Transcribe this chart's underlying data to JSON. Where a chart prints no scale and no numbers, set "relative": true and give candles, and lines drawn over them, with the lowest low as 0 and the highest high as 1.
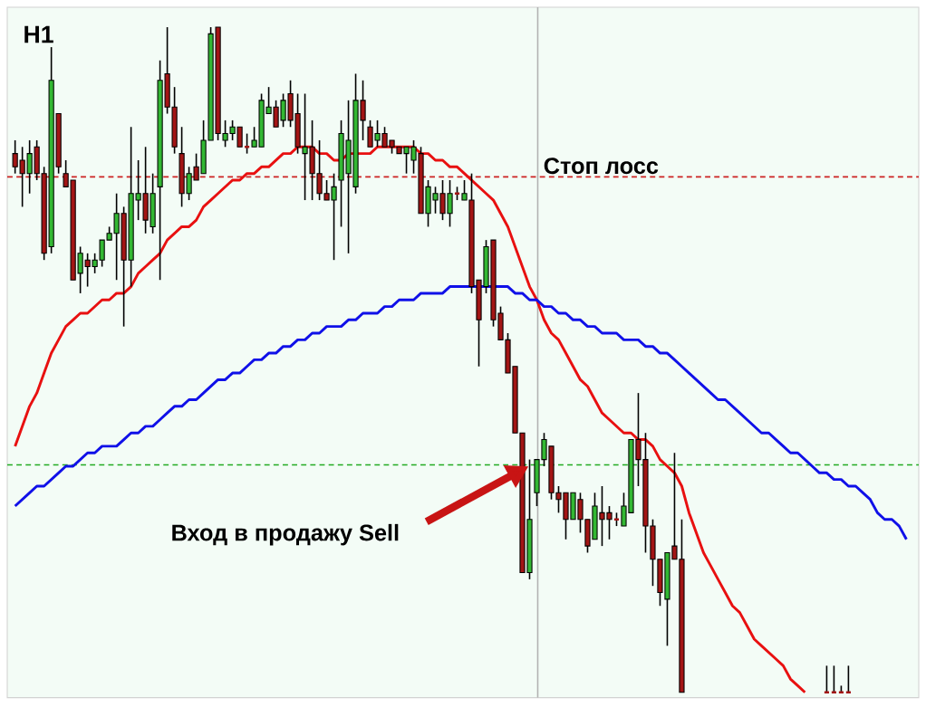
{
  "chart_data": {
    "type": "candlestick",
    "title": "H1",
    "relative": true,
    "categories": [
      null,
      null,
      null,
      null,
      null,
      null,
      null,
      null,
      null,
      null,
      null,
      null,
      null,
      null,
      null,
      null,
      null,
      null,
      null,
      null,
      null,
      null,
      null,
      null,
      null,
      null,
      null,
      null,
      null,
      null,
      null,
      null,
      null,
      null,
      null,
      null,
      null,
      null,
      null,
      null,
      null,
      null,
      null,
      null,
      null,
      null,
      null,
      null,
      null,
      null,
      null,
      null,
      null,
      null,
      null,
      null,
      null,
      null,
      null,
      null,
      null,
      null,
      null,
      null,
      null,
      null,
      null,
      null,
      null,
      null,
      null,
      null,
      null,
      null,
      null,
      null,
      null,
      null,
      null,
      null,
      null,
      null,
      null,
      null,
      null,
      null,
      null,
      null,
      null,
      null,
      null,
      null,
      null,
      null,
      null,
      null,
      null,
      null,
      null,
      null,
      null,
      null,
      null,
      null,
      null,
      null,
      null,
      null,
      null,
      null,
      null,
      null,
      null,
      null,
      null,
      null,
      null,
      null,
      null,
      null,
      null,
      null,
      null,
      null
    ],
    "ohlc": [
      [
        0.81,
        0.83,
        0.78,
        0.79
      ],
      [
        0.8,
        0.82,
        0.73,
        0.78
      ],
      [
        0.78,
        0.83,
        0.75,
        0.81
      ],
      [
        0.82,
        0.83,
        0.77,
        0.78
      ],
      [
        0.78,
        0.79,
        0.65,
        0.66
      ],
      [
        0.67,
        0.97,
        0.66,
        0.92
      ],
      [
        0.87,
        0.87,
        0.78,
        0.79
      ],
      [
        0.78,
        0.8,
        0.76,
        0.76
      ],
      [
        0.77,
        0.77,
        0.62,
        0.62
      ],
      [
        0.63,
        0.67,
        0.6,
        0.66
      ],
      [
        0.65,
        0.66,
        0.61,
        0.64
      ],
      [
        0.64,
        0.66,
        0.63,
        0.65
      ],
      [
        0.65,
        0.68,
        0.64,
        0.68
      ],
      [
        0.68,
        0.7,
        0.68,
        0.69
      ],
      [
        0.69,
        0.75,
        0.62,
        0.72
      ],
      [
        0.72,
        0.73,
        0.55,
        0.65
      ],
      [
        0.65,
        0.85,
        0.61,
        0.75
      ],
      [
        0.74,
        0.8,
        0.71,
        0.75
      ],
      [
        0.75,
        0.82,
        0.69,
        0.71
      ],
      [
        0.7,
        0.78,
        0.69,
        0.75
      ],
      [
        0.76,
        0.95,
        0.62,
        0.92
      ],
      [
        0.93,
        1.0,
        0.87,
        0.88
      ],
      [
        0.88,
        0.91,
        0.81,
        0.82
      ],
      [
        0.81,
        0.85,
        0.73,
        0.75
      ],
      [
        0.75,
        0.79,
        0.74,
        0.78
      ],
      [
        0.79,
        0.81,
        0.77,
        0.77
      ],
      [
        0.78,
        0.86,
        0.78,
        0.83
      ],
      [
        0.83,
        1.0,
        0.83,
        0.99
      ],
      [
        1.0,
        1.0,
        0.83,
        0.84
      ],
      [
        0.83,
        0.86,
        0.82,
        0.84
      ],
      [
        0.84,
        0.86,
        0.83,
        0.85
      ],
      [
        0.85,
        0.85,
        0.82,
        0.82
      ],
      [
        0.82,
        0.84,
        0.81,
        0.82
      ],
      [
        0.82,
        0.85,
        0.82,
        0.83
      ],
      [
        0.82,
        0.9,
        0.82,
        0.89
      ],
      [
        0.87,
        0.91,
        0.87,
        0.88
      ],
      [
        0.88,
        0.89,
        0.85,
        0.85
      ],
      [
        0.86,
        0.9,
        0.85,
        0.89
      ],
      [
        0.9,
        0.92,
        0.85,
        0.86
      ],
      [
        0.87,
        0.9,
        0.81,
        0.82
      ],
      [
        0.81,
        0.9,
        0.74,
        0.82
      ],
      [
        0.82,
        0.86,
        0.74,
        0.78
      ],
      [
        0.78,
        0.83,
        0.74,
        0.75
      ],
      [
        0.75,
        0.77,
        0.74,
        0.74
      ],
      [
        0.74,
        0.78,
        0.65,
        0.76
      ],
      [
        0.77,
        0.86,
        0.7,
        0.84
      ],
      [
        0.78,
        0.89,
        0.66,
        0.83
      ],
      [
        0.76,
        0.93,
        0.75,
        0.89
      ],
      [
        0.89,
        0.92,
        0.83,
        0.86
      ],
      [
        0.85,
        0.86,
        0.82,
        0.82
      ],
      [
        0.83,
        0.86,
        0.82,
        0.84
      ],
      [
        0.84,
        0.85,
        0.82,
        0.82
      ],
      [
        0.83,
        0.83,
        0.81,
        0.82
      ],
      [
        0.82,
        0.82,
        0.81,
        0.81
      ],
      [
        0.81,
        0.82,
        0.78,
        0.82
      ],
      [
        0.8,
        0.83,
        0.78,
        0.82
      ],
      [
        0.81,
        0.82,
        0.72,
        0.72
      ],
      [
        0.72,
        0.77,
        0.7,
        0.76
      ],
      [
        0.74,
        0.76,
        0.72,
        0.75
      ],
      [
        0.75,
        0.77,
        0.71,
        0.72
      ],
      [
        0.72,
        0.77,
        0.7,
        0.75
      ],
      [
        0.75,
        0.76,
        0.74,
        0.75
      ],
      [
        0.74,
        0.77,
        0.74,
        0.75
      ],
      [
        0.74,
        0.78,
        0.6,
        0.61
      ],
      [
        0.62,
        0.62,
        0.49,
        0.56
      ],
      [
        0.61,
        0.68,
        0.6,
        0.67
      ],
      [
        0.68,
        0.68,
        0.55,
        0.56
      ],
      [
        0.57,
        0.58,
        0.53,
        0.53
      ],
      [
        0.53,
        0.54,
        0.48,
        0.48
      ],
      [
        0.49,
        0.49,
        0.39,
        0.39
      ],
      [
        0.39,
        0.39,
        0.18,
        0.18
      ],
      [
        0.18,
        0.35,
        0.17,
        0.26
      ],
      [
        0.3,
        0.35,
        0.28,
        0.35
      ],
      [
        0.35,
        0.39,
        0.34,
        0.38
      ],
      [
        0.37,
        0.37,
        0.29,
        0.3
      ],
      [
        0.3,
        0.31,
        0.27,
        0.29
      ],
      [
        0.3,
        0.3,
        0.23,
        0.26
      ],
      [
        0.26,
        0.3,
        0.26,
        0.3
      ],
      [
        0.29,
        0.3,
        0.24,
        0.26
      ],
      [
        0.26,
        0.26,
        0.21,
        0.22
      ],
      [
        0.23,
        0.3,
        0.23,
        0.28
      ],
      [
        0.27,
        0.31,
        0.22,
        0.26
      ],
      [
        0.27,
        0.28,
        0.23,
        0.26
      ],
      [
        0.26,
        0.27,
        0.25,
        0.26
      ],
      [
        0.25,
        0.3,
        0.25,
        0.28
      ],
      [
        0.27,
        0.38,
        0.27,
        0.38
      ],
      [
        0.38,
        0.45,
        0.31,
        0.35
      ],
      [
        0.35,
        0.39,
        0.21,
        0.25
      ],
      [
        0.25,
        0.26,
        0.16,
        0.2
      ],
      [
        0.2,
        0.2,
        0.13,
        0.15
      ],
      [
        0.14,
        0.21,
        0.07,
        0.21
      ],
      [
        0.22,
        0.36,
        0.2,
        0.2
      ],
      [
        0.2,
        0.26,
        0,
        0
      ],
      null,
      null,
      null,
      null,
      null,
      null,
      null,
      null,
      null,
      null,
      null,
      null,
      null,
      null,
      null,
      null,
      null,
      null,
      null,
      [
        0,
        0.04,
        0,
        0
      ],
      [
        0,
        0.04,
        0,
        0
      ],
      [
        0,
        0.01,
        0,
        0
      ],
      [
        0,
        0.04,
        0,
        0
      ],
      null,
      null,
      null,
      null,
      null,
      null,
      null,
      null
    ],
    "colors": [
      "#a31515",
      "#a31515",
      "#33b833",
      "#a31515",
      "#a31515",
      "#33b833",
      "#a31515",
      "#a31515",
      "#a31515",
      "#33b833",
      "#a31515",
      "#33b833",
      "#33b833",
      "#33b833",
      "#33b833",
      "#a31515",
      "#33b833",
      "#33b833",
      "#a31515",
      "#33b833",
      "#33b833",
      "#a31515",
      "#a31515",
      "#a31515",
      "#33b833",
      "#a31515",
      "#33b833",
      "#33b833",
      "#a31515",
      "#33b833",
      "#33b833",
      "#a31515",
      "#a31515",
      "#33b833",
      "#33b833",
      "#33b833",
      "#a31515",
      "#33b833",
      "#a31515",
      "#a31515",
      "#33b833",
      "#a31515",
      "#a31515",
      "#a31515",
      "#33b833",
      "#33b833",
      "#33b833",
      "#33b833",
      "#a31515",
      "#a31515",
      "#33b833",
      "#a31515",
      "#a31515",
      "#a31515",
      "#33b833",
      "#33b833",
      "#a31515",
      "#33b833",
      "#33b833",
      "#a31515",
      "#33b833",
      "#a31515",
      "#33b833",
      "#a31515",
      "#a31515",
      "#33b833",
      "#a31515",
      "#a31515",
      "#a31515",
      "#a31515",
      "#a31515",
      "#33b833",
      "#33b833",
      "#33b833",
      "#a31515",
      "#a31515",
      "#a31515",
      "#33b833",
      "#a31515",
      "#a31515",
      "#33b833",
      "#a31515",
      "#a31515",
      "#a31515",
      "#33b833",
      "#33b833",
      "#a31515",
      "#a31515",
      "#a31515",
      "#a31515",
      "#33b833",
      "#a31515",
      "#a31515",
      null,
      null,
      null,
      null,
      null,
      null,
      null,
      null,
      null,
      null,
      null,
      null,
      null,
      null,
      null,
      null,
      null,
      null,
      null,
      "#a31515",
      "#a31515",
      "#a31515",
      "#a31515",
      null,
      null,
      null,
      null,
      null,
      null,
      null,
      null
    ],
    "series": [
      {
        "type": "line",
        "color": "#e81010",
        "values": [
          0.37,
          0.4,
          0.43,
          0.45,
          0.48,
          0.51,
          0.53,
          0.55,
          0.56,
          0.57,
          0.57,
          0.58,
          0.59,
          0.59,
          0.6,
          0.6,
          0.61,
          0.63,
          0.64,
          0.65,
          0.66,
          0.68,
          0.69,
          0.7,
          0.7,
          0.71,
          0.73,
          0.74,
          0.75,
          0.76,
          0.77,
          0.77,
          0.78,
          0.78,
          0.79,
          0.79,
          0.8,
          0.81,
          0.81,
          0.82,
          0.82,
          0.82,
          0.81,
          0.81,
          0.8,
          0.8,
          0.81,
          0.81,
          0.81,
          0.81,
          0.82,
          0.82,
          0.82,
          0.82,
          0.82,
          0.82,
          0.81,
          0.81,
          0.8,
          0.8,
          0.79,
          0.79,
          0.78,
          0.77,
          0.76,
          0.75,
          0.74,
          0.72,
          0.7,
          0.67,
          0.64,
          0.61,
          0.59,
          0.56,
          0.54,
          0.53,
          0.51,
          0.49,
          0.47,
          0.46,
          0.44,
          0.42,
          0.41,
          0.4,
          0.39,
          0.39,
          0.38,
          0.38,
          0.37,
          0.35,
          0.34,
          0.33,
          0.31,
          0.27,
          0.24,
          0.21,
          0.19,
          0.17,
          0.15,
          0.13,
          0.12,
          0.1,
          0.08,
          0.07,
          0.06,
          0.05,
          0.04,
          0.02,
          0.01,
          0.0,
          null,
          null,
          null,
          null,
          null,
          null,
          null,
          null,
          null,
          null,
          null,
          null,
          null,
          null
        ]
      },
      {
        "type": "line",
        "color": "#1010e8",
        "values": [
          0.28,
          0.29,
          0.3,
          0.31,
          0.31,
          0.32,
          0.33,
          0.34,
          0.34,
          0.35,
          0.36,
          0.36,
          0.37,
          0.37,
          0.37,
          0.38,
          0.39,
          0.39,
          0.4,
          0.4,
          0.41,
          0.42,
          0.43,
          0.43,
          0.44,
          0.44,
          0.45,
          0.46,
          0.47,
          0.47,
          0.48,
          0.48,
          0.49,
          0.5,
          0.5,
          0.51,
          0.51,
          0.52,
          0.52,
          0.53,
          0.53,
          0.54,
          0.54,
          0.55,
          0.55,
          0.55,
          0.56,
          0.56,
          0.57,
          0.57,
          0.57,
          0.58,
          0.58,
          0.59,
          0.59,
          0.59,
          0.6,
          0.6,
          0.6,
          0.6,
          0.61,
          0.61,
          0.61,
          0.61,
          0.61,
          0.61,
          0.61,
          0.61,
          0.61,
          0.6,
          0.6,
          0.59,
          0.59,
          0.58,
          0.58,
          0.57,
          0.57,
          0.56,
          0.56,
          0.55,
          0.55,
          0.54,
          0.54,
          0.54,
          0.53,
          0.53,
          0.53,
          0.52,
          0.52,
          0.51,
          0.51,
          0.5,
          0.49,
          0.48,
          0.47,
          0.46,
          0.45,
          0.44,
          0.44,
          0.43,
          0.42,
          0.41,
          0.4,
          0.39,
          0.39,
          0.38,
          0.37,
          0.36,
          0.36,
          0.35,
          0.34,
          0.33,
          0.33,
          0.32,
          0.32,
          0.31,
          0.31,
          0.3,
          0.29,
          0.27,
          0.26,
          0.26,
          0.25,
          0.23
        ]
      }
    ],
    "ref_lines": [
      {
        "axis": "y",
        "value": 0.775,
        "label": "Стоп лосс",
        "color": "#cc2222",
        "line_style": "dashed"
      },
      {
        "axis": "y",
        "value": 0.342,
        "color": "#22aa22",
        "line_style": "dashed"
      }
    ],
    "annotations": [
      "Вход в продажу Sell"
    ]
  }
}
